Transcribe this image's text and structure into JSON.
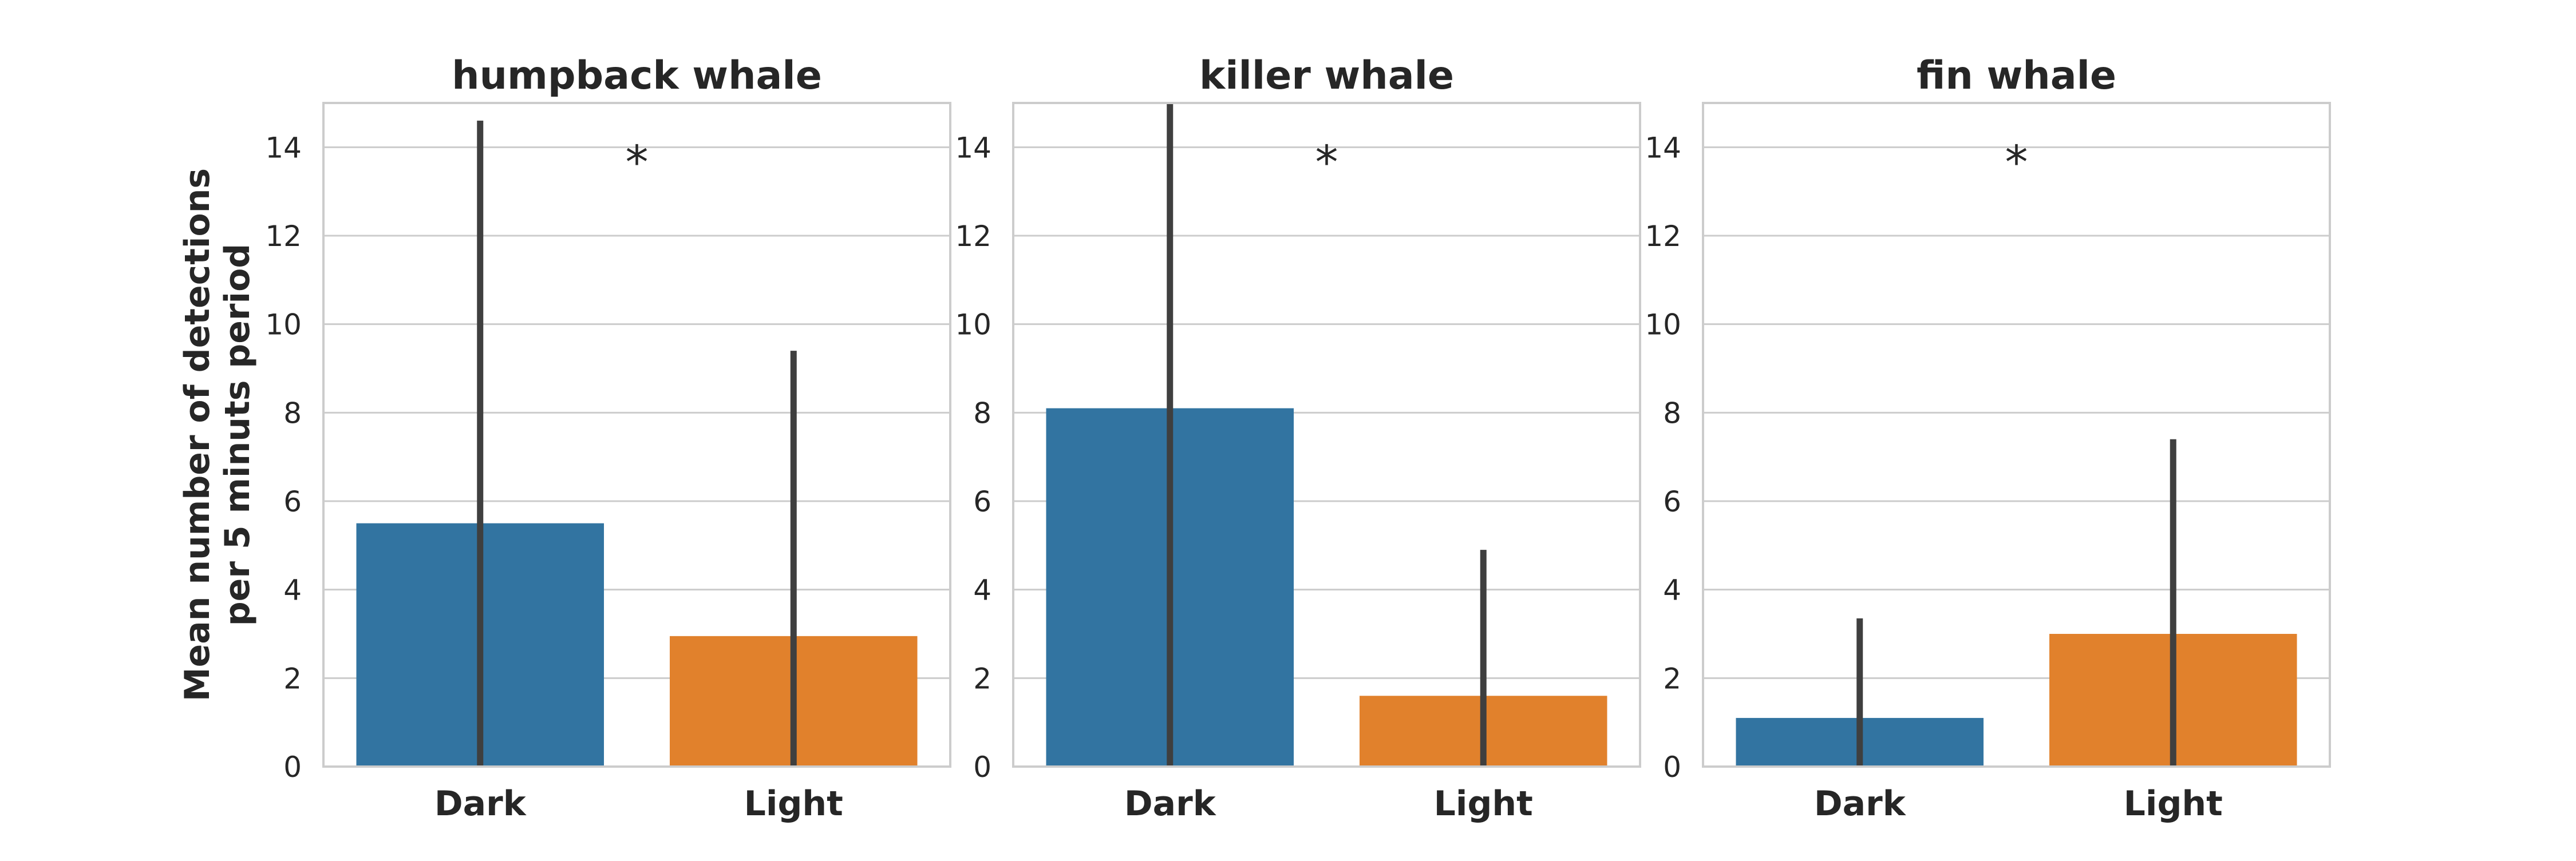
{
  "chart_data": {
    "type": "bar",
    "ylabel": "Mean number of detections\nper 5 minuts period",
    "ylim": [
      0,
      15
    ],
    "yticks": [
      0,
      2,
      4,
      6,
      8,
      10,
      12,
      14
    ],
    "grid": true,
    "categories": [
      "Dark",
      "Light"
    ],
    "colors": {
      "Dark": "#3274a1",
      "Light": "#e1812c",
      "errorbar": "#3f3f3f",
      "grid": "#cccccc",
      "frame": "#cccccc"
    },
    "panels": [
      {
        "title": "humpback whale",
        "values": [
          5.5,
          2.95
        ],
        "errors": [
          [
            0,
            14.6
          ],
          [
            0,
            9.4
          ]
        ],
        "annotation": "*"
      },
      {
        "title": "killer whale",
        "values": [
          8.1,
          1.6
        ],
        "errors": [
          [
            0,
            15
          ],
          [
            0,
            4.9
          ]
        ],
        "annotation": "*"
      },
      {
        "title": "fin whale",
        "values": [
          1.1,
          3.0
        ],
        "errors": [
          [
            0,
            3.35
          ],
          [
            0,
            7.4
          ]
        ],
        "annotation": "*"
      }
    ]
  }
}
